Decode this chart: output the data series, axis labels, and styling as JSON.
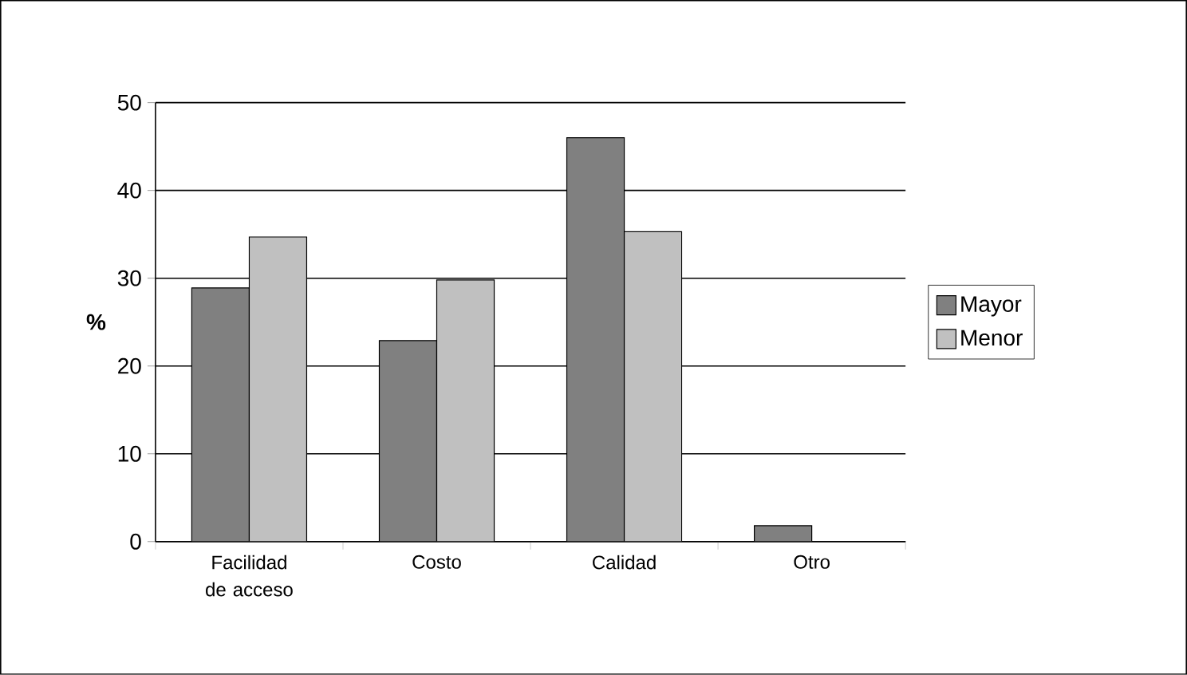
{
  "chart_data": {
    "type": "bar",
    "ylabel": "%",
    "categories": [
      "Facilidad de acceso",
      "Costo",
      "Calidad",
      "Otro"
    ],
    "series": [
      {
        "name": "Mayor",
        "color": "#808080",
        "values": [
          28.9,
          22.9,
          46,
          1.8
        ]
      },
      {
        "name": "Menor",
        "color": "#c0c0c0",
        "values": [
          34.7,
          29.8,
          35.3,
          null
        ]
      }
    ],
    "ylim": [
      0,
      50
    ],
    "yticks": [
      0,
      10,
      20,
      30,
      40,
      50
    ],
    "grid": "y",
    "legend": "right"
  }
}
